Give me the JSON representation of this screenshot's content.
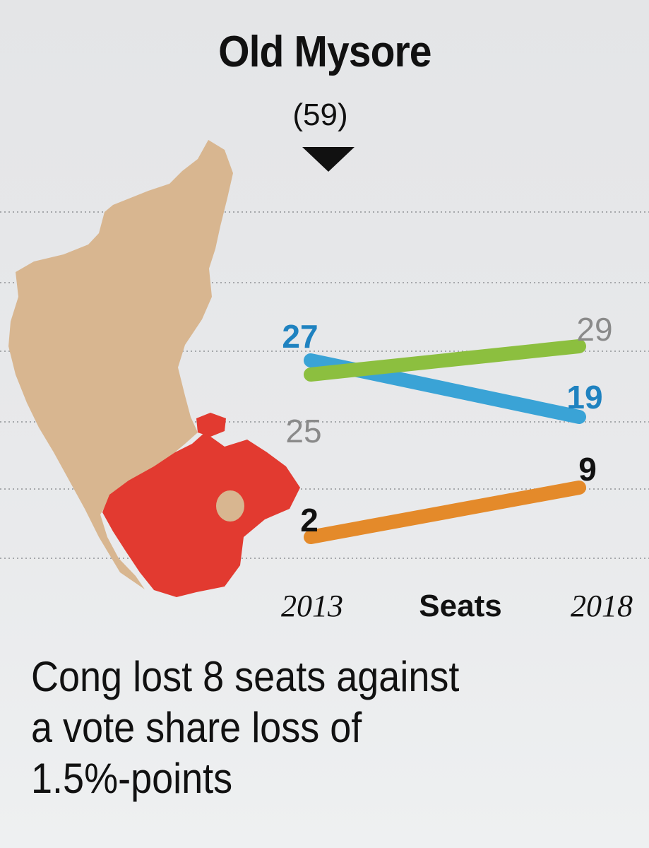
{
  "region": {
    "title": "Old Mysore",
    "total_seats": "(59)"
  },
  "headline": {
    "lines": [
      "Cong lost 8 seats against",
      "a vote share loss of",
      "1.5%-points"
    ]
  },
  "map": {
    "state_color": "#d8b690",
    "region_color": "#e23a30"
  },
  "chart_data": {
    "type": "line",
    "x": [
      "2013",
      "2018"
    ],
    "center_label": "Seats",
    "series": [
      {
        "values": [
          27,
          19
        ],
        "color": "#3aa3d6",
        "label_color": "#1f82c0"
      },
      {
        "values": [
          25,
          29
        ],
        "color": "#8cbf3f",
        "label_color": "#8a8a8a"
      },
      {
        "values": [
          2,
          9
        ],
        "color": "#e48a2a",
        "label_color": "#111111"
      }
    ],
    "ylim": [
      0,
      31
    ],
    "grid": true
  }
}
